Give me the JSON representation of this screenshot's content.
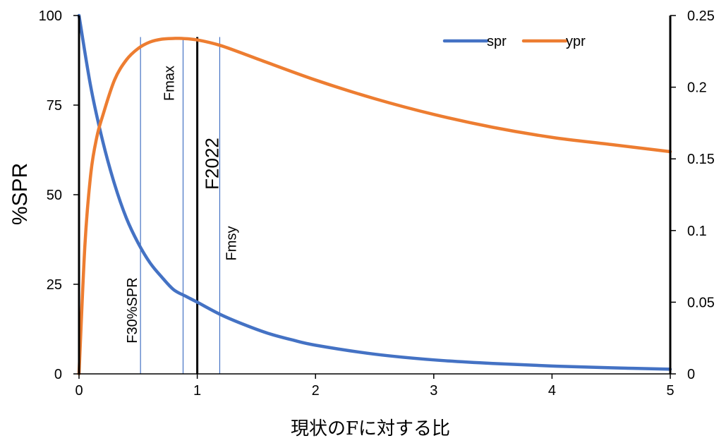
{
  "chart_data": {
    "type": "line",
    "xlabel": "現状のFに対する比",
    "ylabel_left": "%SPR",
    "ylabel_right": "",
    "xlim": [
      0,
      5
    ],
    "ylim_left": [
      0,
      100
    ],
    "ylim_right": [
      0,
      0.25
    ],
    "x_ticks": [
      "0",
      "1",
      "2",
      "3",
      "4",
      "5"
    ],
    "y_left_ticks": [
      "0",
      "25",
      "50",
      "75",
      "100"
    ],
    "y_right_ticks": [
      "0",
      "0.05",
      "0.1",
      "0.15",
      "0.2",
      "0.25"
    ],
    "legend": {
      "position": "top-right",
      "entries": [
        "spr",
        "ypr"
      ]
    },
    "series": [
      {
        "name": "spr",
        "axis": "left",
        "color": "#4472C4",
        "x": [
          0,
          0.1,
          0.2,
          0.3,
          0.4,
          0.5,
          0.6,
          0.7,
          0.8,
          0.9,
          1.0,
          1.2,
          1.4,
          1.6,
          1.8,
          2.0,
          2.5,
          3.0,
          3.5,
          4.0,
          4.5,
          5.0
        ],
        "y": [
          100,
          80,
          65,
          53,
          43.5,
          36.5,
          31,
          27,
          23.5,
          21.7,
          20,
          16.5,
          13.7,
          11.3,
          9.5,
          8.0,
          5.5,
          3.9,
          2.9,
          2.2,
          1.7,
          1.3
        ]
      },
      {
        "name": "ypr",
        "axis": "right",
        "color": "#ED7D31",
        "x": [
          0,
          0.05,
          0.1,
          0.15,
          0.2,
          0.3,
          0.4,
          0.5,
          0.6,
          0.7,
          0.8,
          0.87,
          1.0,
          1.2,
          1.5,
          2.0,
          2.5,
          3.0,
          3.5,
          4.0,
          4.5,
          5.0
        ],
        "y": [
          0,
          0.09,
          0.14,
          0.165,
          0.18,
          0.205,
          0.219,
          0.227,
          0.2315,
          0.2335,
          0.234,
          0.234,
          0.233,
          0.229,
          0.22,
          0.205,
          0.192,
          0.181,
          0.172,
          0.165,
          0.16,
          0.155
        ]
      }
    ],
    "reference_lines": [
      {
        "label": "F30%SPR",
        "x": 0.52,
        "color": "#4472C4"
      },
      {
        "label": "Fmax",
        "x": 0.88,
        "color": "#4472C4"
      },
      {
        "label": "F2022",
        "x": 1.0,
        "color": "#000000"
      },
      {
        "label": "Fmsy",
        "x": 1.19,
        "color": "#4472C4"
      }
    ]
  }
}
